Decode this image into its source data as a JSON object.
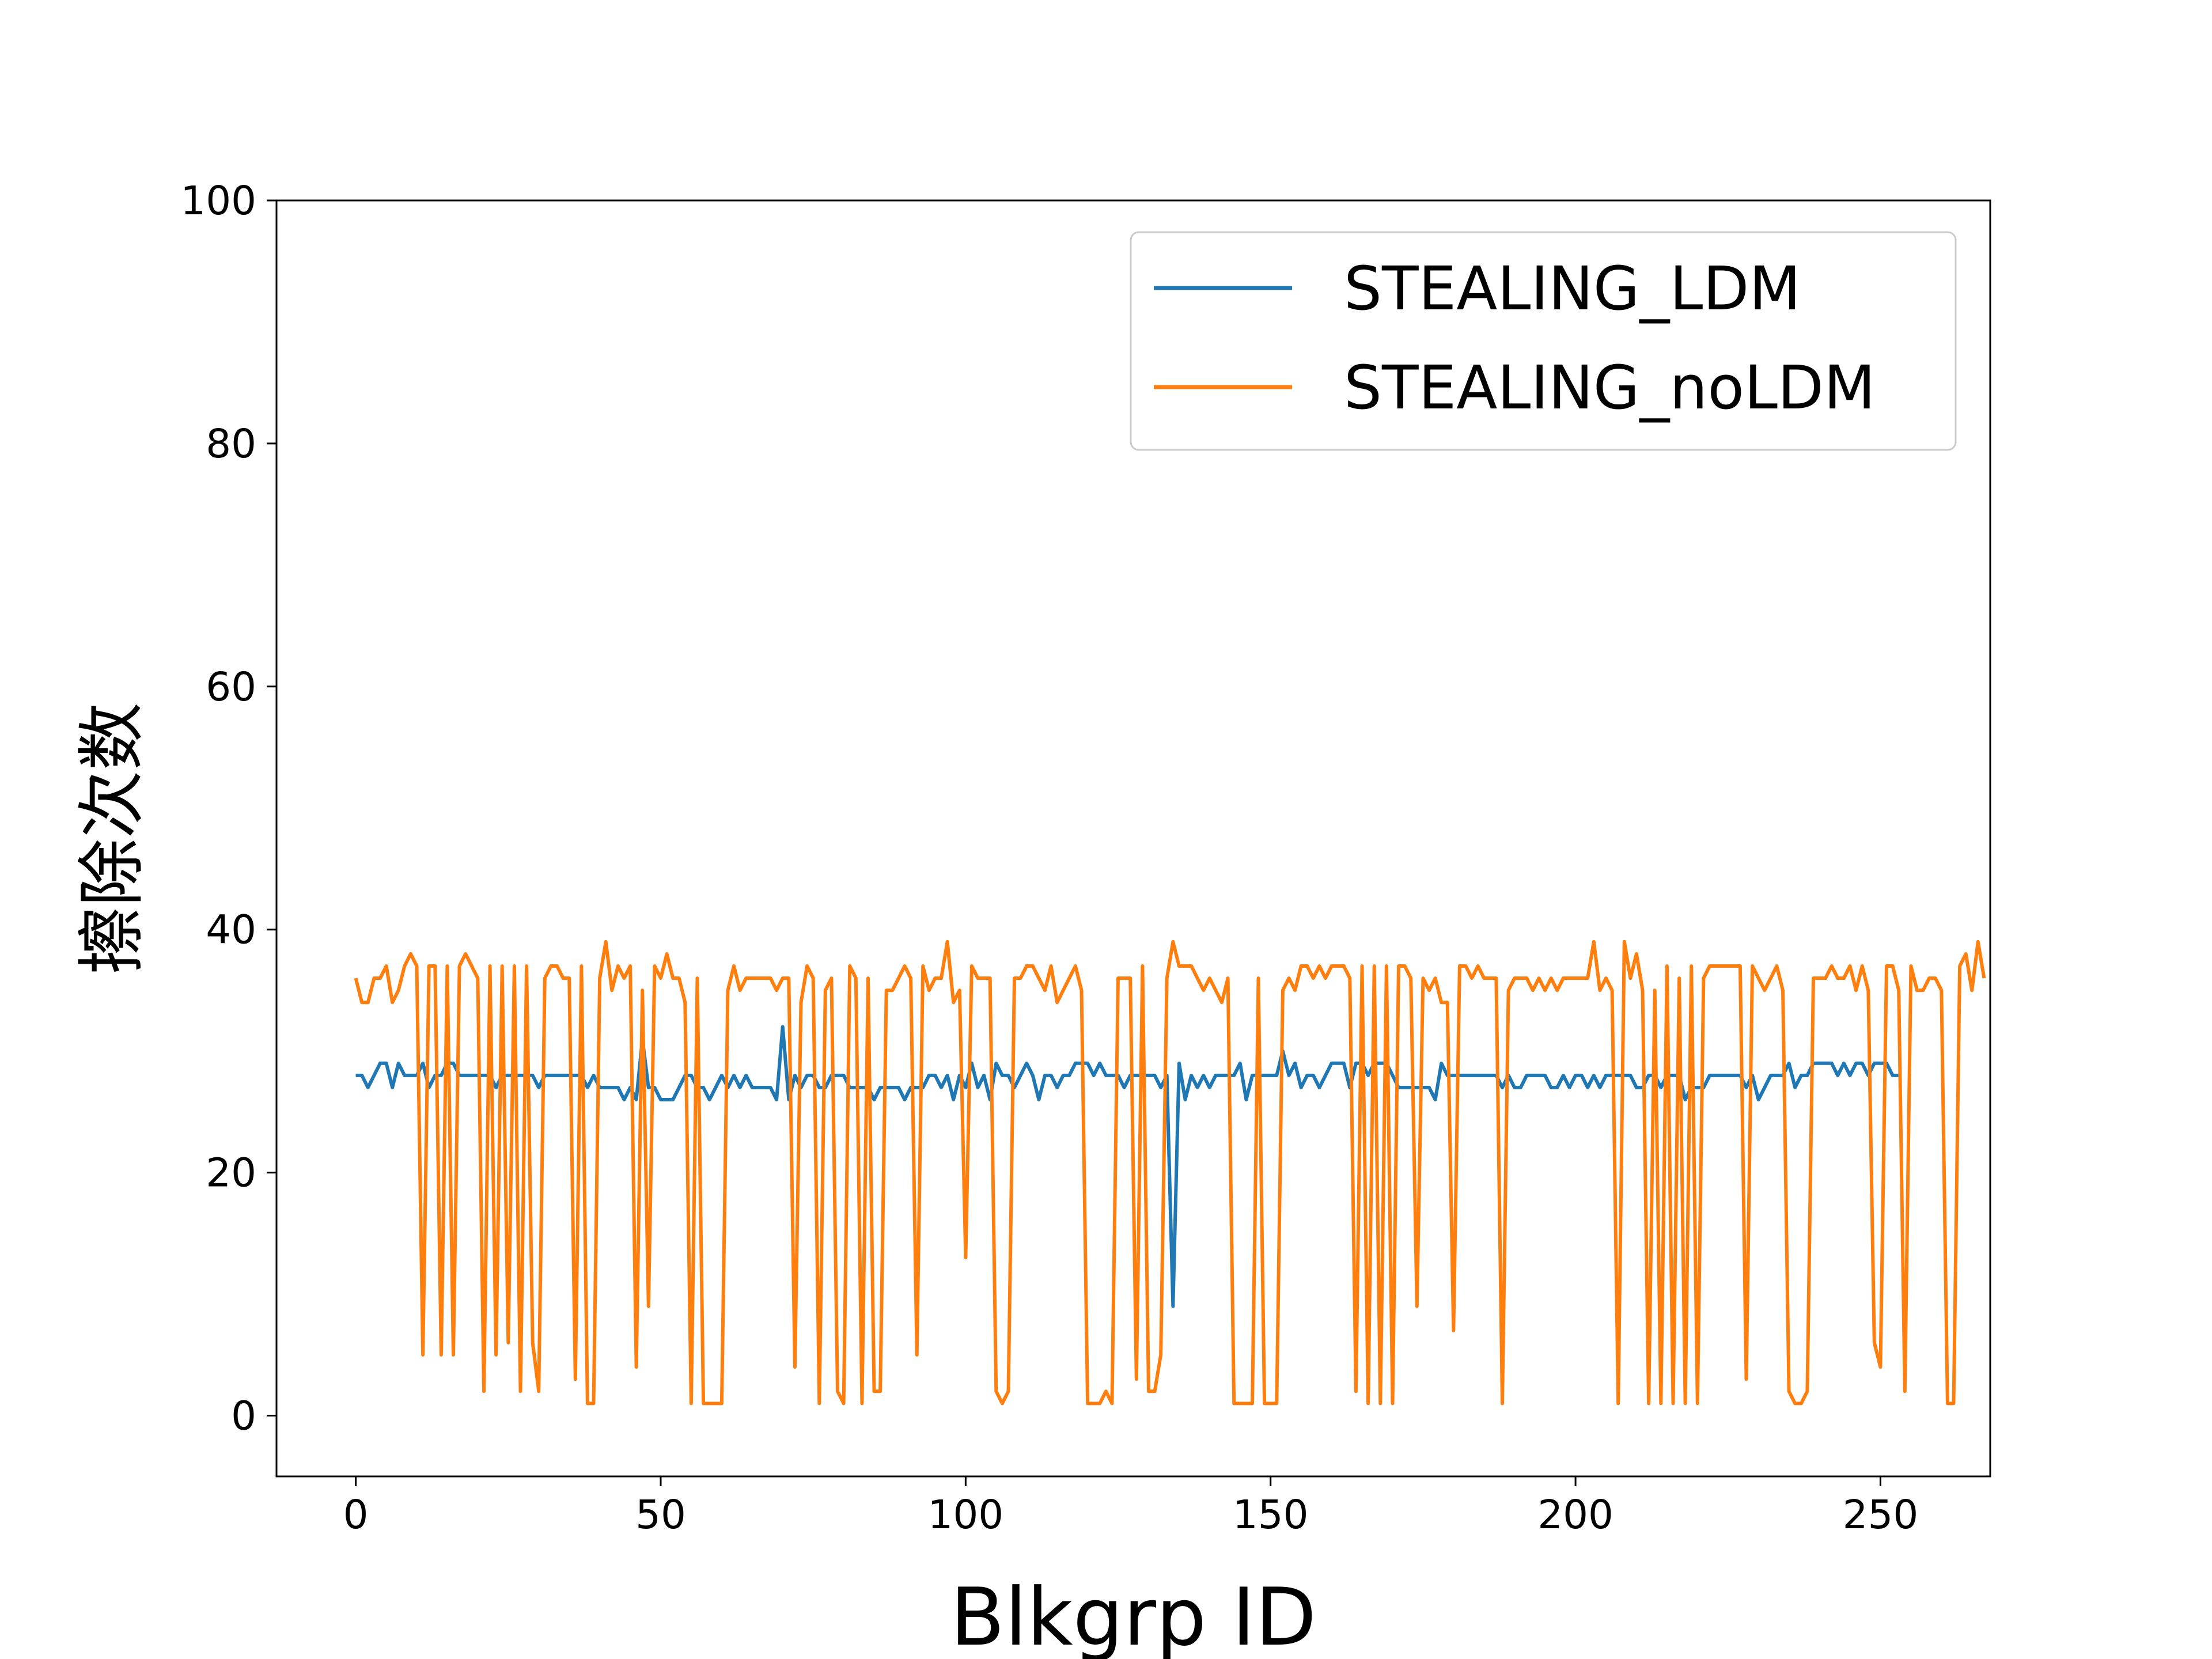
{
  "chart_data": {
    "type": "line",
    "title": "",
    "xlabel": "Blkgrp ID",
    "ylabel": "擦除次数",
    "xlim": [
      -13,
      268
    ],
    "ylim": [
      -5,
      100
    ],
    "xticks": [
      0,
      50,
      100,
      150,
      200,
      250
    ],
    "yticks": [
      0,
      20,
      40,
      60,
      80,
      100
    ],
    "grid": false,
    "legend_position": "top-right",
    "series": [
      {
        "name": "STEALING_LDM",
        "color": "#1f77b4",
        "values": [
          28,
          28,
          27,
          28,
          29,
          29,
          27,
          29,
          28,
          28,
          28,
          29,
          27,
          28,
          28,
          29,
          29,
          28,
          28,
          28,
          28,
          28,
          28,
          27,
          28,
          28,
          28,
          28,
          28,
          28,
          27,
          28,
          28,
          28,
          28,
          28,
          28,
          28,
          27,
          28,
          27,
          27,
          27,
          27,
          26,
          27,
          26,
          31,
          27,
          27,
          26,
          26,
          26,
          27,
          28,
          28,
          27,
          27,
          26,
          27,
          28,
          27,
          28,
          27,
          28,
          27,
          27,
          27,
          27,
          26,
          32,
          26,
          28,
          27,
          28,
          28,
          27,
          27,
          28,
          28,
          28,
          27,
          27,
          27,
          27,
          26,
          27,
          27,
          27,
          27,
          26,
          27,
          27,
          27,
          28,
          28,
          27,
          28,
          26,
          28,
          27,
          29,
          27,
          28,
          26,
          29,
          28,
          28,
          27,
          28,
          29,
          28,
          26,
          28,
          28,
          27,
          28,
          28,
          29,
          29,
          29,
          28,
          29,
          28,
          28,
          28,
          27,
          28,
          28,
          28,
          28,
          28,
          27,
          28,
          9,
          29,
          26,
          28,
          27,
          28,
          27,
          28,
          28,
          28,
          28,
          29,
          26,
          28,
          28,
          28,
          28,
          28,
          30,
          28,
          29,
          27,
          28,
          28,
          27,
          28,
          29,
          29,
          29,
          27,
          29,
          29,
          28,
          29,
          29,
          29,
          28,
          27,
          27,
          27,
          27,
          27,
          27,
          26,
          29,
          28,
          28,
          28,
          28,
          28,
          28,
          28,
          28,
          28,
          27,
          28,
          27,
          27,
          28,
          28,
          28,
          28,
          27,
          27,
          28,
          27,
          28,
          28,
          27,
          28,
          27,
          28,
          28,
          28,
          28,
          28,
          27,
          27,
          28,
          28,
          27,
          28,
          28,
          28,
          26,
          27,
          27,
          27,
          28,
          28,
          28,
          28,
          28,
          28,
          27,
          28,
          26,
          27,
          28,
          28,
          28,
          29,
          27,
          28,
          28,
          29,
          29,
          29,
          29,
          28,
          29,
          28,
          29,
          29,
          28,
          29,
          29,
          29,
          28,
          28
        ]
      },
      {
        "name": "STEALING_noLDM",
        "color": "#ff7f0e",
        "values": [
          36,
          34,
          34,
          36,
          36,
          37,
          34,
          35,
          37,
          38,
          37,
          5,
          37,
          37,
          5,
          37,
          5,
          37,
          38,
          37,
          36,
          2,
          37,
          5,
          37,
          6,
          37,
          2,
          37,
          6,
          2,
          36,
          37,
          37,
          36,
          36,
          3,
          37,
          1,
          1,
          36,
          39,
          35,
          37,
          36,
          37,
          4,
          35,
          9,
          37,
          36,
          38,
          36,
          36,
          34,
          1,
          36,
          1,
          1,
          1,
          1,
          35,
          37,
          35,
          36,
          36,
          36,
          36,
          36,
          35,
          36,
          36,
          4,
          34,
          37,
          36,
          1,
          35,
          36,
          2,
          1,
          37,
          36,
          1,
          36,
          2,
          2,
          35,
          35,
          36,
          37,
          36,
          5,
          37,
          35,
          36,
          36,
          39,
          34,
          35,
          13,
          37,
          36,
          36,
          36,
          2,
          1,
          2,
          36,
          36,
          37,
          37,
          36,
          35,
          37,
          34,
          35,
          36,
          37,
          35,
          1,
          1,
          1,
          2,
          1,
          36,
          36,
          36,
          3,
          37,
          2,
          2,
          5,
          36,
          39,
          37,
          37,
          37,
          36,
          35,
          36,
          35,
          34,
          36,
          1,
          1,
          1,
          1,
          36,
          1,
          1,
          1,
          35,
          36,
          35,
          37,
          37,
          36,
          37,
          36,
          37,
          37,
          37,
          36,
          2,
          37,
          1,
          37,
          1,
          37,
          1,
          37,
          37,
          36,
          9,
          36,
          35,
          36,
          34,
          34,
          7,
          37,
          37,
          36,
          37,
          36,
          36,
          36,
          1,
          35,
          36,
          36,
          36,
          35,
          36,
          35,
          36,
          35,
          36,
          36,
          36,
          36,
          36,
          39,
          35,
          36,
          35,
          1,
          39,
          36,
          38,
          35,
          1,
          35,
          1,
          37,
          1,
          36,
          1,
          37,
          1,
          36,
          37,
          37,
          37,
          37,
          37,
          37,
          3,
          37,
          36,
          35,
          36,
          37,
          35,
          2,
          1,
          1,
          2,
          36,
          36,
          36,
          37,
          36,
          36,
          37,
          35,
          37,
          35,
          6,
          4,
          37,
          37,
          35,
          2,
          37,
          35,
          35,
          36,
          36,
          35,
          1,
          1,
          37,
          38,
          35,
          39,
          36
        ]
      }
    ]
  }
}
